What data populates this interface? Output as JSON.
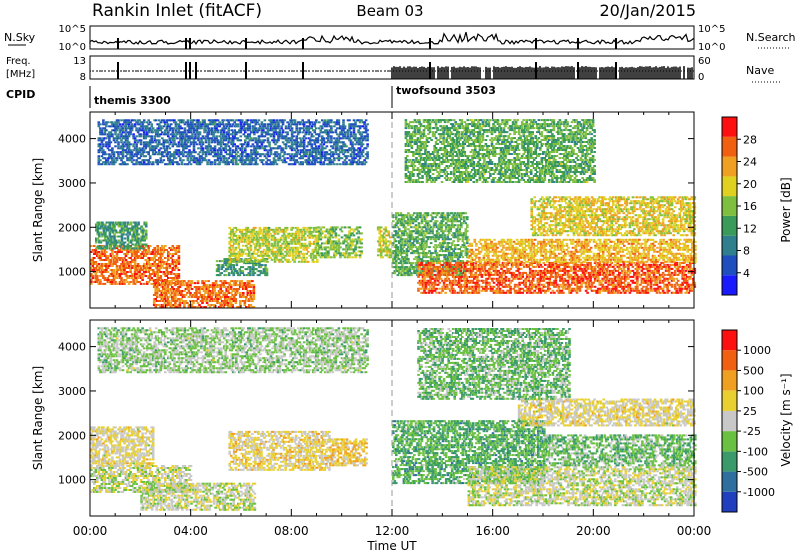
{
  "header": {
    "title": "Rankin Inlet (fitACF)",
    "beam": "Beam 03",
    "date": "20/Jan/2015"
  },
  "top_panels": {
    "nsky_label": "N.Sky",
    "nsky_ticks": [
      "10^5",
      "10^0"
    ],
    "nsearch_label": "N.Search",
    "nsearch_ticks": [
      "10^5",
      "10^0"
    ],
    "freq_label": "Freq.",
    "freq_unit": "[MHz]",
    "freq_ticks": [
      "13",
      "8"
    ],
    "nave_label": "Nave",
    "nave_ticks": [
      "60",
      "0"
    ],
    "cpid_label": "CPID",
    "modes": [
      {
        "name": "themis 3300",
        "start_hour": 0
      },
      {
        "name": "twofsound 3503",
        "start_hour": 12
      }
    ]
  },
  "chart_data": [
    {
      "type": "heatmap",
      "panel": "power",
      "ylabel": "Slant Range [km]",
      "ylim": [
        180,
        4600
      ],
      "yticks": [
        1000,
        2000,
        3000,
        4000
      ],
      "xlabel": "Time UT",
      "xlim": [
        0,
        24
      ],
      "xticks": [
        "00:00",
        "04:00",
        "08:00",
        "12:00",
        "16:00",
        "20:00",
        "00:00"
      ],
      "colorbar": {
        "label": "Power [dB]",
        "ticks": [
          "28",
          "24",
          "20",
          "16",
          "12",
          "8",
          "4"
        ],
        "colors": [
          "#1a1aff",
          "#1f4fbf",
          "#2f7f8f",
          "#3a9a5a",
          "#7fbf3f",
          "#e0d020",
          "#f0a020",
          "#f06010",
          "#ff1010"
        ],
        "range": [
          0,
          32
        ]
      },
      "regions": [
        {
          "t0": 0,
          "t1": 3.5,
          "r0": 700,
          "r1": 1600,
          "v": 26
        },
        {
          "t0": 0.2,
          "t1": 2.2,
          "r0": 1500,
          "r1": 2100,
          "v": 12
        },
        {
          "t0": 2.5,
          "t1": 6.5,
          "r0": 180,
          "r1": 800,
          "v": 26
        },
        {
          "t0": 5.0,
          "t1": 7.0,
          "r0": 900,
          "r1": 1300,
          "v": 12
        },
        {
          "t0": 5.5,
          "t1": 9.0,
          "r0": 1200,
          "r1": 2000,
          "v": 18
        },
        {
          "t0": 9.0,
          "t1": 10.8,
          "r0": 1300,
          "r1": 2000,
          "v": 16
        },
        {
          "t0": 11.4,
          "t1": 11.9,
          "r0": 1300,
          "r1": 2000,
          "v": 18
        },
        {
          "t0": 12.0,
          "t1": 15.0,
          "r0": 900,
          "r1": 2300,
          "v": 14
        },
        {
          "t0": 13.0,
          "t1": 24.0,
          "r0": 500,
          "r1": 1200,
          "v": 27
        },
        {
          "t0": 15.0,
          "t1": 24.0,
          "r0": 1200,
          "r1": 1700,
          "v": 22
        },
        {
          "t0": 17.5,
          "t1": 24.0,
          "r0": 1800,
          "r1": 2700,
          "v": 20
        },
        {
          "t0": 0.3,
          "t1": 11.0,
          "r0": 3400,
          "r1": 4400,
          "v": 7
        },
        {
          "t0": 12.5,
          "t1": 20.0,
          "r0": 3000,
          "r1": 4400,
          "v": 14
        }
      ]
    },
    {
      "type": "heatmap",
      "panel": "velocity",
      "ylabel": "Slant Range [km]",
      "ylim": [
        180,
        4600
      ],
      "yticks": [
        1000,
        2000,
        3000,
        4000
      ],
      "xlabel": "Time UT",
      "xlim": [
        0,
        24
      ],
      "xticks": [
        "00:00",
        "04:00",
        "08:00",
        "12:00",
        "16:00",
        "20:00",
        "00:00"
      ],
      "colorbar": {
        "label": "Velocity [m s⁻¹]",
        "ticks": [
          "1000",
          "500",
          "100",
          "25",
          "-25",
          "-100",
          "-500",
          "-1000"
        ],
        "colors": [
          "#1f3fbf",
          "#2f6fa0",
          "#3a9a6a",
          "#6ac040",
          "#c8c8c8",
          "#e8d030",
          "#f0a020",
          "#f06010",
          "#ff1010"
        ],
        "range": [
          -1200,
          1200
        ]
      },
      "regions": [
        {
          "t0": 0,
          "t1": 2.5,
          "r0": 1300,
          "r1": 2200,
          "v": 150
        },
        {
          "t0": 0,
          "t1": 4.0,
          "r0": 700,
          "r1": 1300,
          "v": 0
        },
        {
          "t0": 2.0,
          "t1": 6.5,
          "r0": 300,
          "r1": 900,
          "v": 0
        },
        {
          "t0": 5.5,
          "t1": 9.5,
          "r0": 1200,
          "r1": 2100,
          "v": 200
        },
        {
          "t0": 9.5,
          "t1": 11.0,
          "r0": 1300,
          "r1": 1900,
          "v": 300
        },
        {
          "t0": 12.0,
          "t1": 18.0,
          "r0": 900,
          "r1": 2300,
          "v": -400
        },
        {
          "t0": 15.0,
          "t1": 24.0,
          "r0": 400,
          "r1": 1300,
          "v": 0
        },
        {
          "t0": 18.0,
          "t1": 24.0,
          "r0": 1300,
          "r1": 2000,
          "v": -300
        },
        {
          "t0": 17.0,
          "t1": 24.0,
          "r0": 2200,
          "r1": 2800,
          "v": 150
        },
        {
          "t0": 0.3,
          "t1": 11.0,
          "r0": 3400,
          "r1": 4400,
          "v": -150
        },
        {
          "t0": 13.0,
          "t1": 19.0,
          "r0": 2800,
          "r1": 4400,
          "v": -300
        }
      ]
    }
  ]
}
